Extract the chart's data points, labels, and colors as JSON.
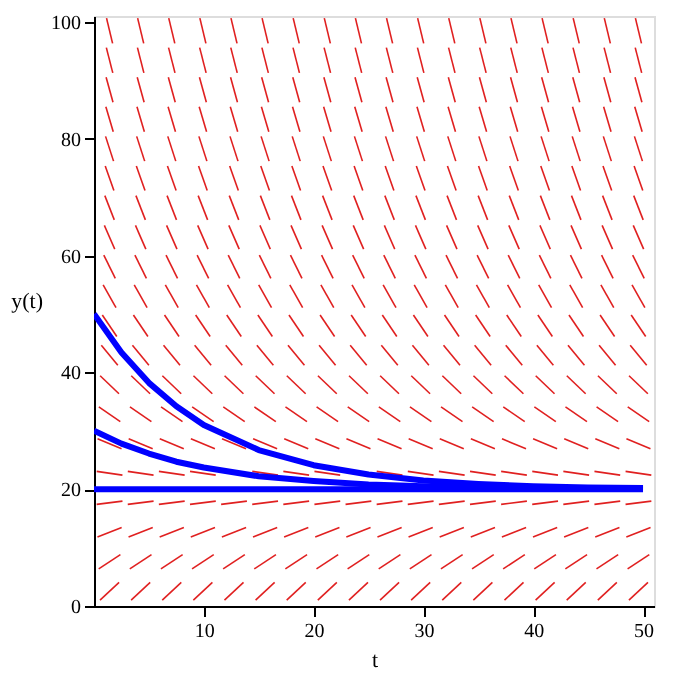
{
  "chart_data": {
    "type": "line",
    "xlabel": "t",
    "ylabel": "y(t)",
    "x": [
      0,
      2.5,
      5,
      7.5,
      10,
      15,
      20,
      25,
      30,
      35,
      40,
      45,
      50
    ],
    "series": [
      {
        "color": "#0000ff",
        "values": [
          50,
          43.4,
          38.2,
          34.2,
          31.0,
          26.7,
          24.1,
          22.5,
          21.5,
          20.9,
          20.5,
          20.3,
          20.2
        ]
      },
      {
        "color": "#0000ff",
        "values": [
          30,
          27.8,
          26.1,
          24.7,
          23.7,
          22.2,
          21.4,
          20.8,
          20.5,
          20.3,
          20.2,
          20.1,
          20.1
        ]
      },
      {
        "color": "#0000ff",
        "values": [
          20,
          20,
          20,
          20,
          20,
          20,
          20,
          20,
          20,
          20,
          20,
          20,
          20
        ]
      }
    ],
    "xlim": [
      0,
      51
    ],
    "ylim": [
      0,
      101
    ],
    "xticks": [
      10,
      20,
      30,
      40,
      50
    ],
    "yticks": [
      0,
      20,
      40,
      60,
      80,
      100
    ],
    "grid": false,
    "marker": "none",
    "line_style": "solid"
  }
}
